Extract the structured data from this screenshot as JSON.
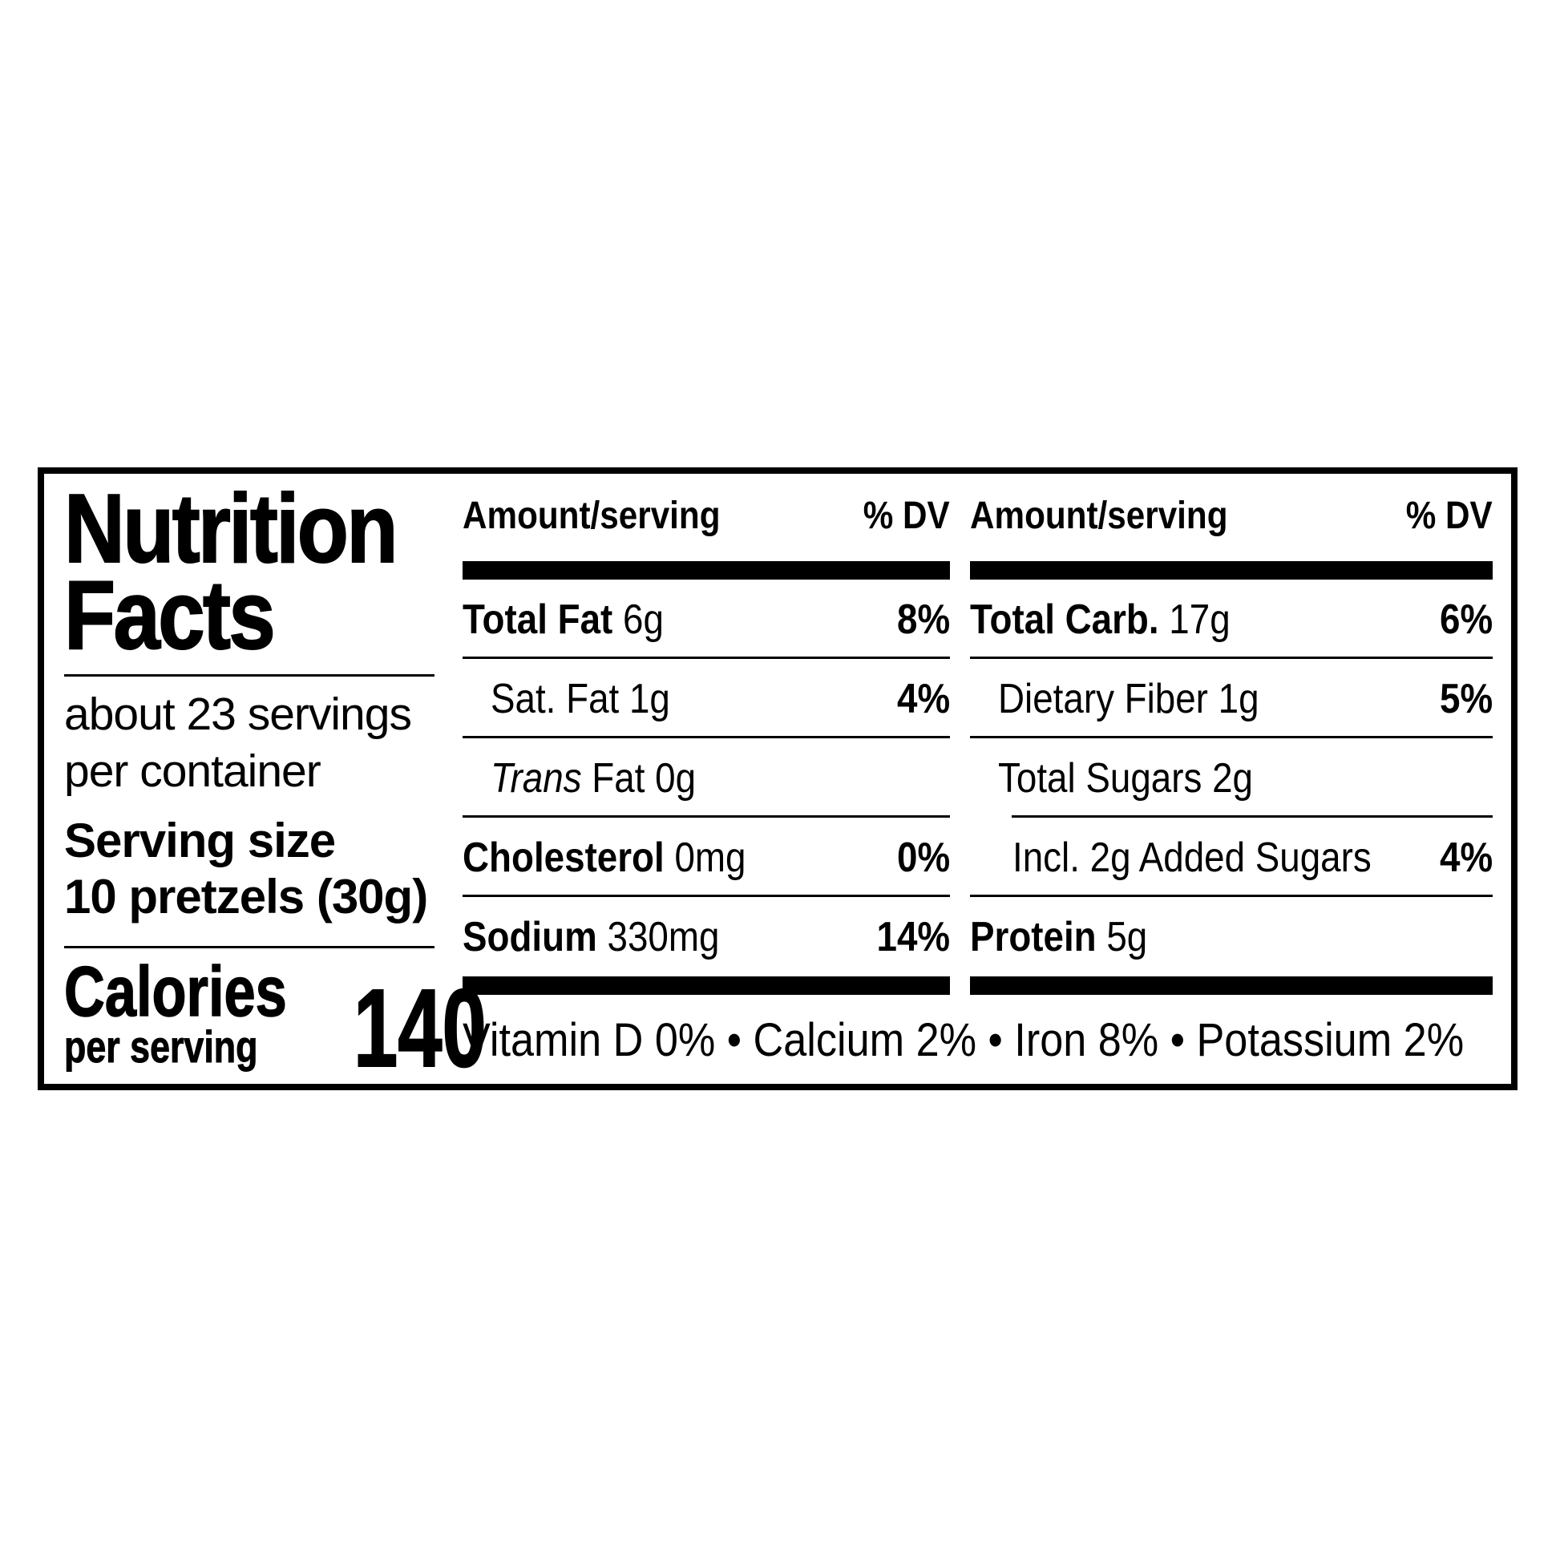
{
  "page": {
    "background": "#ffffff",
    "ink": "#000000"
  },
  "label": {
    "title_line1": "Nutrition",
    "title_line2": "Facts",
    "servings_per_container_line1": "about 23 servings",
    "servings_per_container_line2": "per container",
    "serving_size_label": "Serving size",
    "serving_size_value": "10 pretzels (30g)",
    "calories_label": "Calories",
    "calories_sublabel": "per serving",
    "calories_value": "140",
    "columns": [
      {
        "amount_header": "Amount/serving",
        "dv_header": "% DV",
        "rows": [
          {
            "italic": "",
            "bold": "Total Fat",
            "regular": " 6g",
            "dv": "8%"
          },
          {
            "italic": "",
            "bold": "",
            "regular": "Sat. Fat 1g",
            "dv": "4%"
          },
          {
            "italic": "Trans",
            "bold": "",
            "regular": " Fat 0g",
            "dv": ""
          },
          {
            "italic": "",
            "bold": "Cholesterol",
            "regular": " 0mg",
            "dv": "0%"
          },
          {
            "italic": "",
            "bold": "Sodium",
            "regular": " 330mg",
            "dv": "14%"
          }
        ]
      },
      {
        "amount_header": "Amount/serving",
        "dv_header": "% DV",
        "rows": [
          {
            "italic": "",
            "bold": "Total Carb.",
            "regular": " 17g",
            "dv": "6%"
          },
          {
            "italic": "",
            "bold": "",
            "regular": "Dietary Fiber 1g",
            "dv": "5%"
          },
          {
            "italic": "",
            "bold": "",
            "regular": "Total Sugars 2g",
            "dv": ""
          },
          {
            "italic": "",
            "bold": "",
            "regular": "Incl. 2g Added Sugars",
            "dv": "4%"
          },
          {
            "italic": "",
            "bold": "Protein",
            "regular": " 5g",
            "dv": ""
          }
        ]
      }
    ],
    "micronutrients": "Vitamin D 0% • Calcium 2% • Iron 8% • Potassium 2%"
  }
}
